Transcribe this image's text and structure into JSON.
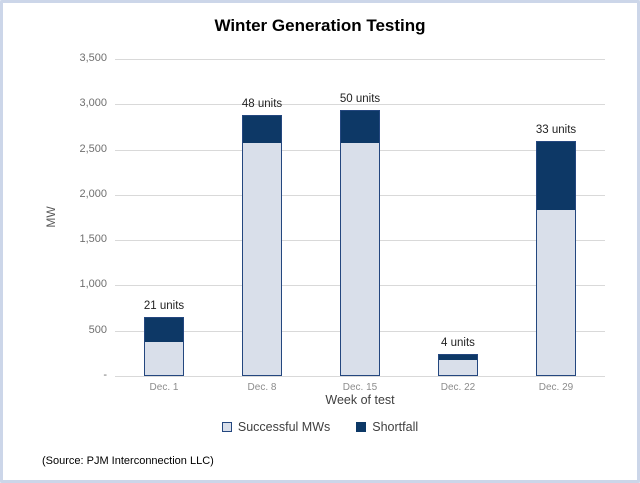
{
  "frame": {
    "border_color": "#ccd6e9",
    "background": "#ffffff"
  },
  "title": "Winter Generation Testing",
  "source_note": "(Source: PJM Interconnection LLC)",
  "chart_data": {
    "type": "bar",
    "stacked": true,
    "title": "Winter Generation Testing",
    "xlabel": "Week of test",
    "ylabel": "MW",
    "categories": [
      "Dec. 1",
      "Dec. 8",
      "Dec. 15",
      "Dec. 22",
      "Dec. 29"
    ],
    "series": [
      {
        "name": "Successful MWs",
        "color": "#d9dfea",
        "border_color": "#24477f",
        "values": [
          370,
          2570,
          2570,
          170,
          1825
        ]
      },
      {
        "name": "Shortfall",
        "color": "#0d3866",
        "values": [
          280,
          310,
          365,
          70,
          775
        ]
      }
    ],
    "bar_totals": [
      650,
      2880,
      2935,
      240,
      2600
    ],
    "bar_labels": [
      "21 units",
      "48 units",
      "50 units",
      "4 units",
      "33 units"
    ],
    "ylim": [
      0,
      3500
    ],
    "yticks": [
      {
        "value": 0,
        "label": "-"
      },
      {
        "value": 500,
        "label": "500"
      },
      {
        "value": 1000,
        "label": "1,000"
      },
      {
        "value": 1500,
        "label": "1,500"
      },
      {
        "value": 2000,
        "label": "2,000"
      },
      {
        "value": 2500,
        "label": "2,500"
      },
      {
        "value": 3000,
        "label": "3,000"
      },
      {
        "value": 3500,
        "label": "3,500"
      }
    ],
    "grid": true,
    "gridline_color": "#d9d9d9",
    "legend_position": "bottom"
  }
}
